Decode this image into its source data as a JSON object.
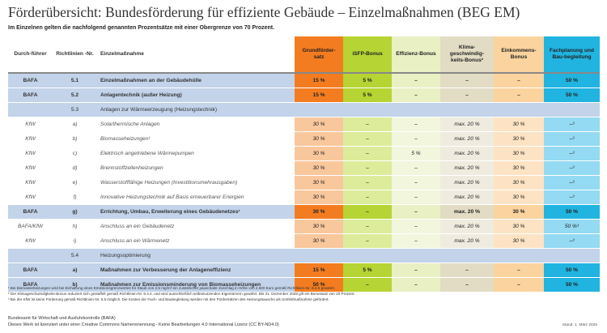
{
  "title": "Förderübersicht: Bundesförderung für effiziente Gebäude – Einzelmaßnahmen (BEG EM)",
  "subtitle": "Im Einzelnen gelten die nachfolgend genannten Prozentsätze mit einer Obergrenze von 70 Prozent.",
  "headers": {
    "durchfuehrer": "Durch-führer",
    "richtlinien": "Richtlinien -Nr.",
    "massnahme": "Einzelmaßnahme",
    "grund": "Grundförder-satz",
    "isfp": "iSFP-Bonus",
    "effizienz": "Effizienz-Bonus",
    "klima": "Klima-geschwindig-keits-Bonus²",
    "einkommen": "Einkommens-Bonus",
    "fachplanung": "Fachplanung und Bau-begleitung"
  },
  "rows": [
    {
      "org": "BAFA",
      "nr": "5.1",
      "name": "Einzelmaßnahmen an der Gebäudehülle",
      "grund": "15 %",
      "isfp": "5 %",
      "eff": "–",
      "klima": "–",
      "eink": "–",
      "fach": "50 %"
    },
    {
      "org": "BAFA",
      "nr": "5.2",
      "name": "Anlagentechnik (außer Heizung)",
      "grund": "15 %",
      "isfp": "5 %",
      "eff": "–",
      "klima": "–",
      "eink": "–",
      "fach": "50 %"
    },
    {
      "org": "",
      "nr": "5.3",
      "name": "Anlagen zur Wärmeerzeugung (Heizungstechnik)",
      "grund": "",
      "isfp": "",
      "eff": "",
      "klima": "",
      "eink": "",
      "fach": ""
    },
    {
      "org": "KfW",
      "nr": "a)",
      "name": "Solarthermische Anlagen",
      "grund": "30 %",
      "isfp": "–",
      "eff": "–",
      "klima": "max. 20 %",
      "eink": "30 %",
      "fach": "–³"
    },
    {
      "org": "KfW",
      "nr": "b)",
      "name": "Biomasseheizungen¹",
      "grund": "30 %",
      "isfp": "–",
      "eff": "–",
      "klima": "max. 20 %",
      "eink": "30 %",
      "fach": "–³"
    },
    {
      "org": "KfW",
      "nr": "c)",
      "name": "Elektrisch angetriebene Wärmepumpen",
      "grund": "30 %",
      "isfp": "–",
      "eff": "5 %",
      "klima": "max. 20 %",
      "eink": "30 %",
      "fach": "–³"
    },
    {
      "org": "KfW",
      "nr": "d)",
      "name": "Brennstoffzellenheizungen",
      "grund": "30 %",
      "isfp": "–",
      "eff": "–",
      "klima": "max. 20 %",
      "eink": "30 %",
      "fach": "–³"
    },
    {
      "org": "KfW",
      "nr": "e)",
      "name": "Wasserstofffähige Heizungen (Investitionsmehrausgaben)",
      "grund": "30 %",
      "isfp": "–",
      "eff": "–",
      "klima": "max. 20 %",
      "eink": "30 %",
      "fach": "–³"
    },
    {
      "org": "KfW",
      "nr": "f)",
      "name": "Innovative Heizungstechnik auf Basis erneuerbarer Energien",
      "grund": "30 %",
      "isfp": "–",
      "eff": "–",
      "klima": "max. 20 %",
      "eink": "30 %",
      "fach": "–³"
    },
    {
      "org": "BAFA",
      "nr": "g)",
      "name": "Errichtung, Umbau, Erweiterung eines Gebäudenetzes¹",
      "grund": "30 %",
      "isfp": "–",
      "eff": "–",
      "klima": "max. 20 %",
      "eink": "30 %",
      "fach": "50 %"
    },
    {
      "org": "BAFA/KfW",
      "nr": "h)",
      "name": "Anschluss an ein Gebäudenetz",
      "grund": "30 %",
      "isfp": "–",
      "eff": "–",
      "klima": "max. 20 %",
      "eink": "30 %",
      "fach": "50 %³"
    },
    {
      "org": "KfW",
      "nr": "i)",
      "name": "Anschluss an ein Wärmenetz",
      "grund": "30 %",
      "isfp": "–",
      "eff": "–",
      "klima": "max. 20 %",
      "eink": "30 %",
      "fach": "–³"
    },
    {
      "org": "",
      "nr": "5.4",
      "name": "Heizungsoptimierung",
      "grund": "",
      "isfp": "",
      "eff": "",
      "klima": "",
      "eink": "",
      "fach": ""
    },
    {
      "org": "BAFA",
      "nr": "a)",
      "name": "Maßnahmen zur Verbesserung der Anlageneffizienz",
      "grund": "15 %",
      "isfp": "5 %",
      "eff": "–",
      "klima": "–",
      "eink": "–",
      "fach": "50 %"
    },
    {
      "org": "BAFA",
      "nr": "b)",
      "name": "Maßnahmen zur Emissionsminderung von Biomasseheizungen",
      "grund": "50 %",
      "isfp": "–",
      "eff": "–",
      "klima": "–",
      "eink": "–",
      "fach": "50 %"
    }
  ],
  "footnotes": [
    "¹ Bei Biomasseheizungen wird bei Einhaltung eines Emissionsgrenzwertes für Staub von 2,5 mg/m³ ein zusätzlicher pauschaler Zuschlag in Höhe von 2.500 Euro gemäß Richtlinien-Nr. 8.4.6 gewährt.",
    "² Der Klimageschwindigkeits-Bonus reduziert sich gestaffelt gemäß Richtlinien-Nr. 8.4.4. und wird ausschließlich selbstnutzenden Eigentümern gewährt. Bis 31. Dezember 2028 gilt ein Bonussatz von 20 Prozent.",
    "³ Bei der KfW ist keine Förderung gemäß Richtlinien-Nr. 5.5 möglich. Die Kosten der Fach- und Baubegleitung werden mit den Fördersätzen des Heizungstauschs als Umfeldmaßnahme gefördert."
  ],
  "publisher": "Bundesamt für Wirtschaft und Ausfuhrkontrolle (BAFA)",
  "license": "Dieses Werk ist lizenziert unter einer Creative Commons Namensnennung - Keine Bearbeitungen 4.0 International Lizenz (CC BY-ND4.0)",
  "stand": "Stand: 1. März 2025",
  "colors": {
    "grund": "#f47c20",
    "isfp": "#b6d433",
    "effizienz": "#e9f0c4",
    "klima": "#e2dcc4",
    "einkommen": "#fad39e",
    "fachplanung": "#21b4e0",
    "row_highlight": "#c2d3ea"
  }
}
